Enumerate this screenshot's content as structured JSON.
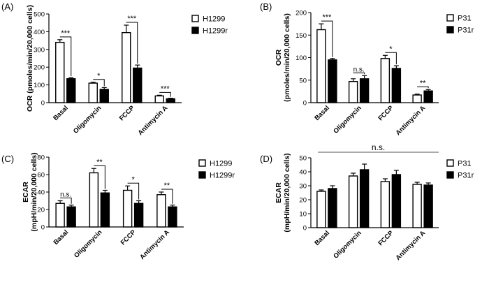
{
  "chart_data": [
    {
      "panel_label": "(A)",
      "type": "bar",
      "categories": [
        "Basal",
        "Oligomycin",
        "FCCP",
        "Antimycin A"
      ],
      "series": [
        {
          "name": "H1299",
          "fill": "#ffffff",
          "values": [
            340,
            110,
            395,
            38
          ],
          "errors": [
            15,
            5,
            42,
            4
          ]
        },
        {
          "name": "H1299r",
          "fill": "#000000",
          "values": [
            135,
            75,
            195,
            22
          ],
          "errors": [
            6,
            10,
            17,
            3
          ]
        }
      ],
      "ylabel": "OCR (pmoles/min/20,000 cells)",
      "ylim": [
        0,
        500
      ],
      "yticks": [
        0,
        100,
        200,
        300,
        400,
        500
      ],
      "significance": [
        "***",
        "*",
        "***",
        "***"
      ],
      "global_annotation": ""
    },
    {
      "panel_label": "(B)",
      "type": "bar",
      "categories": [
        "Basal",
        "Oligomycin",
        "FCCP",
        "Antimycin A"
      ],
      "series": [
        {
          "name": "P31",
          "fill": "#ffffff",
          "values": [
            162,
            47,
            98,
            17
          ],
          "errors": [
            13,
            6,
            7,
            2
          ]
        },
        {
          "name": "P31r",
          "fill": "#000000",
          "values": [
            95,
            53,
            76,
            26
          ],
          "errors": [
            3,
            7,
            6,
            3
          ]
        }
      ],
      "ylabel": "OCR\n(pmoles/min/20,000 cells)",
      "ylim": [
        0,
        200
      ],
      "yticks": [
        0,
        50,
        100,
        150,
        200
      ],
      "significance": [
        "***",
        "n.s.",
        "*",
        "**"
      ],
      "global_annotation": ""
    },
    {
      "panel_label": "(C)",
      "type": "bar",
      "categories": [
        "Basal",
        "Oligomycin",
        "FCCP",
        "Antimycin A"
      ],
      "series": [
        {
          "name": "H1299",
          "fill": "#ffffff",
          "values": [
            27,
            62,
            42,
            37
          ],
          "errors": [
            3,
            5,
            5,
            3
          ]
        },
        {
          "name": "H1299r",
          "fill": "#000000",
          "values": [
            23,
            39,
            27,
            23
          ],
          "errors": [
            2,
            3,
            3,
            2
          ]
        }
      ],
      "ylabel": "ECAR\n(mpH/min/20,000 cells)",
      "ylim": [
        0,
        80
      ],
      "yticks": [
        0,
        20,
        40,
        60,
        80
      ],
      "significance": [
        "n.s.",
        "**",
        "*",
        "**"
      ],
      "global_annotation": ""
    },
    {
      "panel_label": "(D)",
      "type": "bar",
      "categories": [
        "Basal",
        "Oligomycin",
        "FCCP",
        "Antimycin A"
      ],
      "series": [
        {
          "name": "P31",
          "fill": "#ffffff",
          "values": [
            26,
            37,
            33,
            31
          ],
          "errors": [
            1,
            2,
            2,
            1.5
          ]
        },
        {
          "name": "P31r",
          "fill": "#000000",
          "values": [
            28,
            41.5,
            38,
            30.5
          ],
          "errors": [
            2,
            4,
            3,
            1.5
          ]
        }
      ],
      "ylabel": "ECAR\n(mpH/min/20,000 cells)",
      "ylim": [
        0,
        50
      ],
      "yticks": [
        0,
        10,
        20,
        30,
        40,
        50
      ],
      "significance": [
        "",
        "",
        "",
        ""
      ],
      "global_annotation": "n.s."
    }
  ]
}
